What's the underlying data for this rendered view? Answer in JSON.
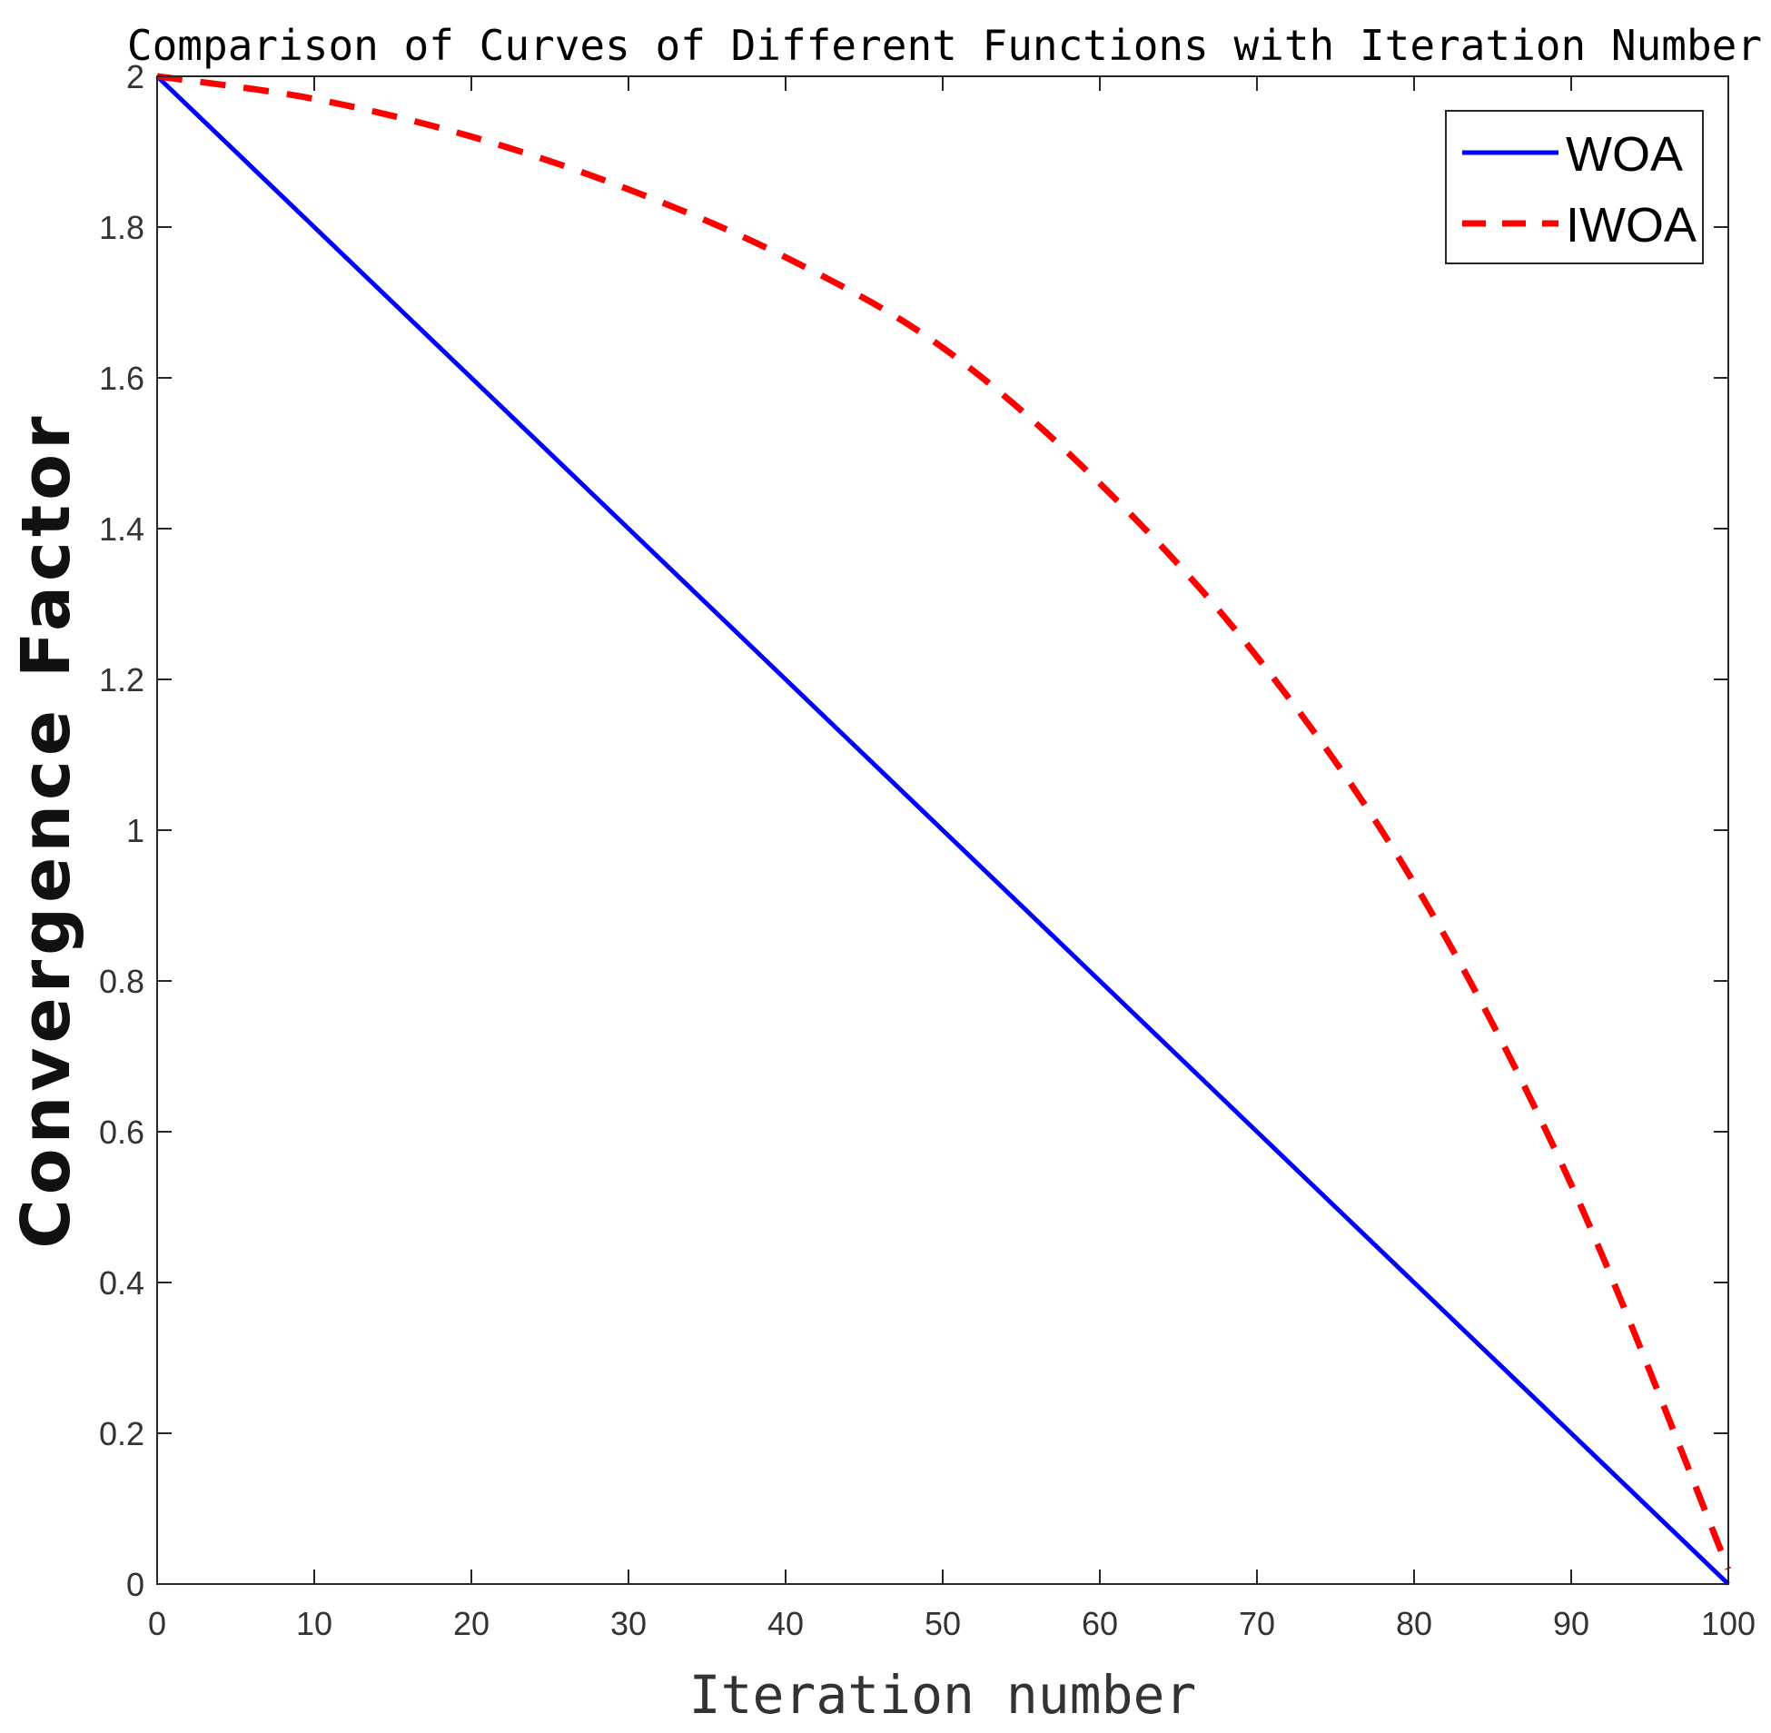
{
  "chart_data": {
    "type": "line",
    "title": "Comparison of Curves of Different Functions with Iteration Number",
    "xlabel": "Iteration number",
    "ylabel": "Convergence Factor",
    "xlim": [
      0,
      100
    ],
    "ylim": [
      0,
      2
    ],
    "xticks": [
      0,
      10,
      20,
      30,
      40,
      50,
      60,
      70,
      80,
      90,
      100
    ],
    "yticks": [
      0,
      0.2,
      0.4,
      0.6,
      0.8,
      1,
      1.2,
      1.4,
      1.6,
      1.8,
      2
    ],
    "x": [
      0,
      10,
      20,
      30,
      40,
      50,
      60,
      70,
      80,
      90,
      100
    ],
    "grid": false,
    "legend_position": "top-right",
    "series": [
      {
        "name": "WOA",
        "color": "#0000ff",
        "style": "solid",
        "values": [
          2.0,
          1.8,
          1.6,
          1.4,
          1.2,
          1.0,
          0.8,
          0.6,
          0.4,
          0.2,
          0.0
        ]
      },
      {
        "name": "IWOA",
        "color": "#ff0000",
        "style": "dashed",
        "values": [
          2.0,
          1.97,
          1.92,
          1.85,
          1.76,
          1.64,
          1.46,
          1.23,
          0.93,
          0.53,
          0.02
        ]
      }
    ]
  }
}
